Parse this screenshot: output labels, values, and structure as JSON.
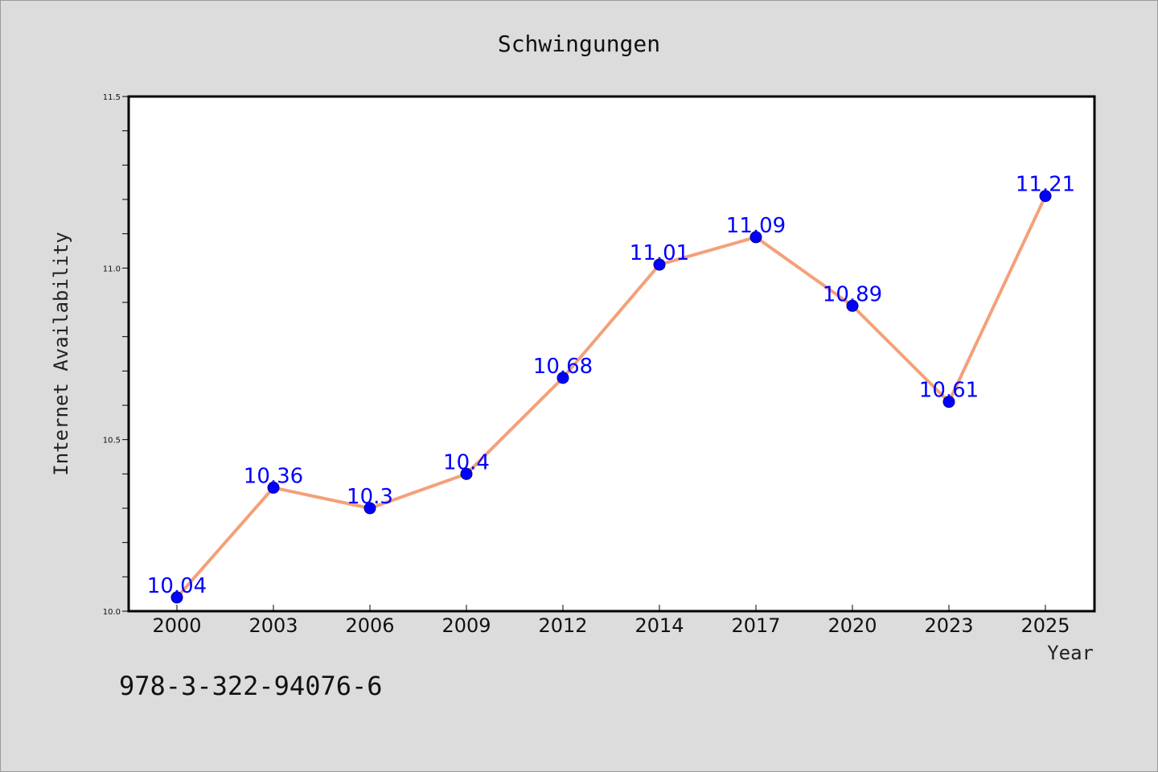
{
  "chart_data": {
    "type": "line",
    "title": "Schwingungen",
    "xlabel": "Year",
    "ylabel": "Internet Availability",
    "categories": [
      "2000",
      "2003",
      "2006",
      "2009",
      "2012",
      "2014",
      "2017",
      "2020",
      "2023",
      "2025"
    ],
    "series": [
      {
        "values": [
          10.04,
          10.36,
          10.3,
          10.4,
          10.68,
          11.01,
          11.09,
          10.89,
          10.61,
          11.21
        ],
        "data_labels": [
          "10.04",
          "10.36",
          "10.3",
          "10.4",
          "10.68",
          "11.01",
          "11.09",
          "10.89",
          "10.61",
          "11.21"
        ],
        "line_color": "#f4a07a",
        "marker_color": "#0000ff"
      }
    ],
    "ylim": [
      10.0,
      11.5
    ],
    "yticks": [
      "10.0",
      "10.5",
      "11.0",
      "11.5"
    ],
    "yticks_minor_step": 0.1,
    "grid": false,
    "legend": "none"
  },
  "footnote": "978-3-322-94076-6"
}
